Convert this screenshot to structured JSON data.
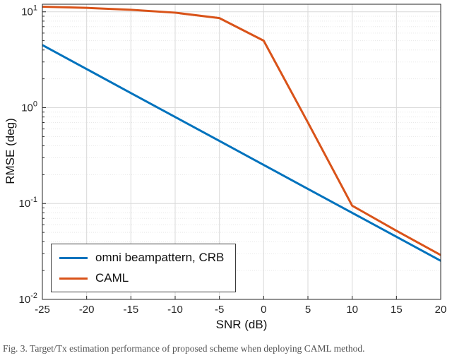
{
  "caption": "Fig. 3. Target/Tx estimation performance of proposed scheme when deploying CAML method.",
  "chart_data": {
    "type": "line",
    "title": "",
    "xlabel": "SNR (dB)",
    "ylabel": "RMSE (deg)",
    "x_ticks": [
      -25,
      -20,
      -15,
      -10,
      -5,
      0,
      5,
      10,
      15,
      20
    ],
    "y_tick_exponents": [
      -2,
      -1,
      0,
      1
    ],
    "xlim": [
      -25,
      20
    ],
    "ylim": [
      0.01,
      12
    ],
    "y_scale": "log",
    "grid": true,
    "minor_grid_y": true,
    "legend_position": "south-west",
    "x": [
      -25,
      -20,
      -15,
      -10,
      -5,
      0,
      5,
      10,
      15,
      20
    ],
    "series": [
      {
        "name": "omni beampattern, CRB",
        "color": "#0072BD",
        "values": [
          4.5,
          2.53,
          1.42,
          0.8,
          0.45,
          0.253,
          0.142,
          0.08,
          0.045,
          0.0253
        ]
      },
      {
        "name": "CAML",
        "color": "#D95319",
        "values": [
          11.3,
          11.0,
          10.5,
          9.8,
          8.6,
          5.0,
          0.7,
          0.095,
          0.052,
          0.029
        ]
      }
    ],
    "axis_color": "#262626",
    "grid_color": "#d9d9d9",
    "minor_grid_color": "#e8e8e8"
  }
}
